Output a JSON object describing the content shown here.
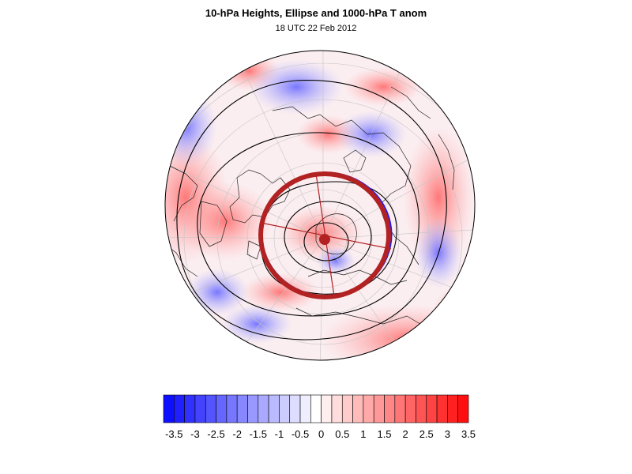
{
  "title": "10-hPa Heights, Ellipse and 1000-hPa T anom",
  "subtitle": "18 UTC 22 Feb 2012",
  "projection": "north-polar-stereographic",
  "colors": {
    "cool_extreme": "#1010ff",
    "warm_extreme": "#ff1010",
    "ellipse_outline": "#b22222",
    "ellipse_inner": "#1a1aff",
    "contour": "#000000",
    "coastline": "#000000",
    "grid": "#bdbdbd"
  },
  "colorbar": {
    "levels": [
      -3.5,
      -3.25,
      -3,
      -2.75,
      -2.5,
      -2.25,
      -2,
      -1.75,
      -1.5,
      -1.25,
      -1,
      -0.75,
      -0.5,
      -0.25,
      0,
      0.25,
      0.5,
      0.75,
      1,
      1.25,
      1.5,
      1.75,
      2,
      2.25,
      2.5,
      2.75,
      3,
      3.25,
      3.5
    ],
    "tick_labels": [
      "-3.5",
      "-3",
      "-2.5",
      "-2",
      "-1.5",
      "-1",
      "-0.5",
      "0",
      "0.5",
      "1",
      "1.5",
      "2",
      "2.5",
      "3",
      "3.5"
    ]
  }
}
